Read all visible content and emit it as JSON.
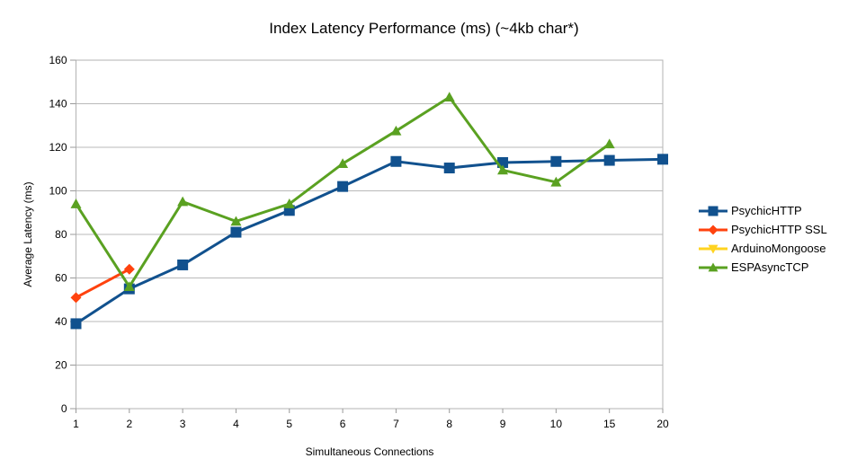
{
  "chart_data": {
    "type": "line",
    "title": "Index Latency Performance (ms) (~4kb char*)",
    "xlabel": "Simultaneous Connections",
    "ylabel": "Average Latency (ms)",
    "categories": [
      "1",
      "2",
      "3",
      "4",
      "5",
      "6",
      "7",
      "8",
      "9",
      "10",
      "15",
      "20"
    ],
    "ylim": [
      0,
      160
    ],
    "y_ticks": [
      0,
      20,
      40,
      60,
      80,
      100,
      120,
      140,
      160
    ],
    "grid": "horizontal",
    "legend_position": "right",
    "series": [
      {
        "name": "PsychicHTTP",
        "color": "#11518E",
        "marker": "square",
        "values": [
          39,
          55,
          66,
          81,
          91,
          102,
          113.5,
          110.5,
          113,
          113.5,
          114,
          114.5
        ]
      },
      {
        "name": "PsychicHTTP SSL",
        "color": "#FF420E",
        "marker": "diamond",
        "values": [
          51,
          64,
          null,
          null,
          null,
          null,
          null,
          null,
          null,
          null,
          null,
          null
        ]
      },
      {
        "name": "ArduinoMongoose",
        "color": "#FFD320",
        "marker": "triangle-down",
        "values": [
          null,
          null,
          null,
          null,
          null,
          null,
          null,
          null,
          null,
          null,
          null,
          null
        ]
      },
      {
        "name": "ESPAsyncTCP",
        "color": "#5AA121",
        "marker": "triangle-up",
        "values": [
          94,
          56,
          95,
          86,
          94,
          112.5,
          127.5,
          143,
          109.5,
          104,
          121.5,
          null
        ]
      }
    ],
    "frame_color": "#b3b3b3",
    "grid_color": "#b9b9b9",
    "tick_color": "#999999",
    "text_color": "#000000"
  }
}
